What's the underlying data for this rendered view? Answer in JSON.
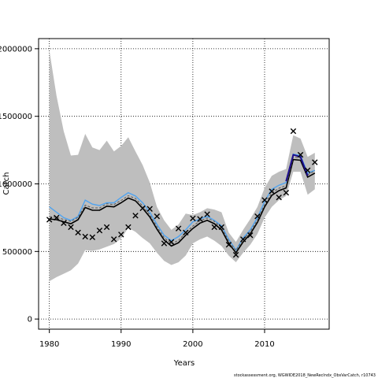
{
  "chart_data": {
    "type": "line",
    "xlabel": "Years",
    "ylabel": "Catch",
    "credit": "stockassessment.org, WGWIDE2018_NewRecIndx_ObsVarCatch, r10743",
    "xlim": [
      1978.5,
      2019
    ],
    "ylim": [
      -75000,
      2075000
    ],
    "x_ticks": [
      1980,
      1990,
      2000,
      2010
    ],
    "y_ticks": [
      0,
      500000,
      1000000,
      1500000,
      2000000
    ],
    "y_tick_labels": [
      "0",
      "500000",
      "1000000",
      "1500000",
      "2000000"
    ],
    "grid": true,
    "colors": {
      "band": "#bebebe",
      "estimate": "#000000",
      "estimate_dashed": "#555555",
      "alt_line": "#4fa3f0",
      "recent": "#1e0d8c",
      "observed": "#000000"
    },
    "years": [
      1980,
      1981,
      1982,
      1983,
      1984,
      1985,
      1986,
      1987,
      1988,
      1989,
      1990,
      1991,
      1992,
      1993,
      1994,
      1995,
      1996,
      1997,
      1998,
      1999,
      2000,
      2001,
      2002,
      2003,
      2004,
      2005,
      2006,
      2007,
      2008,
      2009,
      2010,
      2011,
      2012,
      2013,
      2014,
      2015,
      2016,
      2017
    ],
    "series": [
      {
        "values": [
          740000,
          735000,
          720000,
          705000,
          735000,
          825000,
          805000,
          805000,
          835000,
          830000,
          860000,
          895000,
          875000,
          820000,
          755000,
          665000,
          585000,
          540000,
          565000,
          620000,
          670000,
          710000,
          730000,
          705000,
          660000,
          560000,
          490000,
          570000,
          630000,
          715000,
          830000,
          915000,
          950000,
          970000,
          1180000,
          1175000,
          1050000,
          1080000
        ]
      },
      {
        "values": [
          830000,
          790000,
          750000,
          730000,
          760000,
          880000,
          850000,
          840000,
          860000,
          860000,
          900000,
          935000,
          910000,
          860000,
          790000,
          700000,
          620000,
          580000,
          610000,
          660000,
          720000,
          740000,
          760000,
          730000,
          690000,
          590000,
          510000,
          600000,
          660000,
          750000,
          870000,
          960000,
          990000,
          1010000,
          1220000,
          1210000,
          1080000,
          1100000
        ]
      },
      {
        "name": "",
        "values": [
          null,
          null,
          null,
          null,
          null,
          null,
          null,
          null,
          null,
          null,
          null,
          null,
          null,
          null,
          null,
          null,
          null,
          null,
          null,
          null,
          null,
          null,
          null,
          null,
          null,
          null,
          null,
          null,
          null,
          null,
          null,
          null,
          null,
          1020000,
          1215000,
          1200000,
          1060000,
          null
        ]
      }
    ],
    "band_lower": [
      280000,
      310000,
      335000,
      360000,
      410000,
      510000,
      505000,
      515000,
      535000,
      555000,
      595000,
      675000,
      645000,
      600000,
      560000,
      490000,
      430000,
      400000,
      420000,
      470000,
      560000,
      590000,
      610000,
      580000,
      540000,
      470000,
      420000,
      490000,
      550000,
      630000,
      750000,
      830000,
      880000,
      910000,
      1090000,
      1090000,
      920000,
      960000
    ],
    "band_upper": [
      1985000,
      1650000,
      1390000,
      1210000,
      1215000,
      1370000,
      1270000,
      1250000,
      1320000,
      1240000,
      1280000,
      1345000,
      1240000,
      1140000,
      1010000,
      830000,
      730000,
      660000,
      700000,
      780000,
      770000,
      790000,
      820000,
      810000,
      790000,
      640000,
      570000,
      660000,
      740000,
      830000,
      970000,
      1060000,
      1090000,
      1110000,
      1360000,
      1335000,
      1200000,
      1230000
    ]
  },
  "observations": {
    "years": [
      1980,
      1981,
      1982,
      1983,
      1984,
      1985,
      1986,
      1987,
      1988,
      1989,
      1990,
      1991,
      1992,
      1993,
      1994,
      1995,
      1996,
      1997,
      1998,
      1999,
      2000,
      2001,
      2002,
      2003,
      2004,
      2005,
      2006,
      2007,
      2008,
      2009,
      2010,
      2011,
      2012,
      2013,
      2014,
      2015,
      2016,
      2017
    ],
    "values": [
      735000,
      750000,
      710000,
      680000,
      640000,
      610000,
      605000,
      655000,
      680000,
      590000,
      625000,
      680000,
      765000,
      820000,
      815000,
      760000,
      560000,
      570000,
      670000,
      640000,
      745000,
      740000,
      775000,
      680000,
      680000,
      550000,
      475000,
      590000,
      620000,
      760000,
      880000,
      945000,
      900000,
      935000,
      1390000,
      1215000,
      1100000,
      1160000
    ]
  }
}
